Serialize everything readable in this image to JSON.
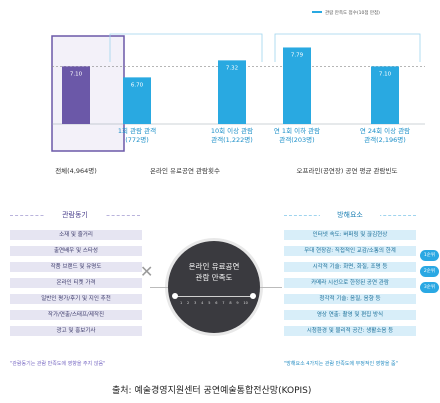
{
  "chart_data": {
    "type": "bar",
    "legend": "관람 만족도 점수(10점 만점)",
    "ylim": [
      5,
      8.5
    ],
    "reference_value": 7.1,
    "categories": [
      {
        "label": "전체(4,964명)",
        "value": 7.1,
        "color": "#6b58a8"
      },
      {
        "label": "1회 관람 관객\n(772명)",
        "value": 6.7,
        "color": "#29a9e1"
      },
      {
        "label": "10회 이상 관람\n관객(1,222명)",
        "value": 7.32,
        "color": "#29a9e1"
      },
      {
        "label": "연 1회 이하 관람\n관객(203명)",
        "value": 7.79,
        "color": "#29a9e1"
      },
      {
        "label": "연 24회 이상 관람\n관객(2,196명)",
        "value": 7.1,
        "color": "#29a9e1"
      }
    ],
    "value_labels": [
      "7.10",
      "6.70",
      "7.32",
      "7.79",
      "7.10"
    ],
    "group_labels": [
      "온라인 유료공연 관람횟수",
      "오프라인(공연장) 공연 평균 관람빈도"
    ]
  },
  "left_panel": {
    "title": "관람동기",
    "items": [
      "소재 및 줄거리",
      "출연배우 및 스타성",
      "작품 브랜드 및 유명도",
      "온라인 티켓 가격",
      "일반인 평가/후기 및 지인 추천",
      "작가/연출/스태프/제작진",
      "광고 및 홍보기사"
    ],
    "note": "\"관람동기는 관람 만족도에 영향을 주지 않음\""
  },
  "center": {
    "line1": "온라인 유료공연",
    "line2": "관람 만족도",
    "scale": [
      "1",
      "2",
      "3",
      "4",
      "5",
      "6",
      "7",
      "8",
      "9",
      "10"
    ],
    "cross": "✕"
  },
  "right_panel": {
    "title": "방해요소",
    "items": [
      "인터넷 속도: 버퍼링 및 끊김현상",
      "무대 현장감: 직접적인 교감/소통의 한계",
      "시각적 기술: 화면, 화질, 조명 등",
      "카메라 시선으로 한정된 공연 관람",
      "청각적 기술: 음질, 음향 등",
      "영상 연출: 촬영 및 편집 방식",
      "시청환경 및 물리적 공간: 생활소음 등"
    ],
    "pills": [
      "1순위",
      "2순위",
      "3순위"
    ],
    "note": "\"방해요소 4가지는 관람 만족도에 부정적인 영향을 줌\""
  },
  "source": "출처: 예술경영지원센터 공연예술통합전산망(KOPIS)"
}
